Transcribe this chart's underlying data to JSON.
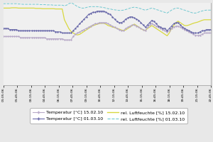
{
  "bg_color": "#e8e8e8",
  "plot_bg_color": "#f0f0f0",
  "x_labels": [
    "01:05:06",
    "01:45:06",
    "03:15:06",
    "04:45:06",
    "06:15:06",
    "07:45:06",
    "09:15:06",
    "10:45:06",
    "12:15:06",
    "13:45:06",
    "15:15:06",
    "16:45:06",
    "18:15:06",
    "19:45:06",
    "21:15:06",
    "22:45:06"
  ],
  "temp_15_color": "#b8aac8",
  "temp_01_color": "#6a6aaa",
  "hum_15_color": "#d8d840",
  "hum_01_color": "#70c8d0",
  "legend_labels": [
    "Temperatur [°C] 15.02.10",
    "Temperatur [°C] 01.03.10",
    "rel. Luftfeuchte [%] 15.02.10",
    "rel. Luftfeuchte [%] 01.03.10"
  ],
  "n_points": 96,
  "temp_15": [
    20.5,
    20.5,
    20.5,
    20.5,
    20.5,
    20.5,
    20.5,
    20.5,
    20.4,
    20.4,
    20.4,
    20.4,
    20.4,
    20.4,
    20.4,
    20.4,
    20.4,
    20.4,
    20.4,
    20.4,
    20.3,
    20.3,
    20.3,
    20.3,
    20.3,
    20.3,
    20.3,
    20.3,
    20.2,
    20.2,
    20.2,
    20.2,
    20.5,
    20.7,
    20.8,
    20.9,
    21.0,
    21.1,
    21.2,
    21.3,
    21.4,
    21.5,
    21.6,
    21.6,
    21.7,
    21.7,
    21.7,
    21.7,
    21.6,
    21.5,
    21.4,
    21.3,
    21.2,
    21.1,
    21.0,
    21.0,
    21.2,
    21.3,
    21.4,
    21.5,
    21.5,
    21.4,
    21.3,
    21.2,
    21.1,
    21.0,
    21.3,
    21.5,
    21.6,
    21.5,
    21.4,
    21.3,
    21.2,
    21.1,
    21.0,
    20.9,
    21.0,
    21.2,
    21.3,
    21.4,
    21.4,
    21.3,
    21.2,
    21.1,
    21.0,
    20.9,
    20.8,
    20.7,
    20.6,
    20.6,
    20.6,
    20.7,
    20.8,
    20.8,
    20.8,
    20.8
  ],
  "temp_01": [
    21.2,
    21.2,
    21.2,
    21.1,
    21.1,
    21.1,
    21.1,
    21.0,
    21.0,
    21.0,
    21.0,
    21.0,
    21.0,
    21.0,
    21.0,
    21.0,
    21.0,
    21.0,
    21.0,
    21.0,
    21.0,
    21.0,
    21.0,
    21.0,
    20.9,
    20.9,
    20.9,
    20.8,
    20.8,
    20.8,
    20.8,
    20.8,
    21.0,
    21.2,
    21.4,
    21.6,
    21.8,
    22.0,
    22.2,
    22.4,
    22.5,
    22.6,
    22.6,
    22.7,
    22.7,
    22.7,
    22.7,
    22.6,
    22.5,
    22.4,
    22.2,
    22.0,
    21.8,
    21.7,
    21.7,
    21.8,
    22.0,
    22.1,
    22.2,
    22.2,
    22.1,
    22.0,
    21.9,
    21.7,
    21.5,
    21.3,
    21.5,
    21.7,
    21.9,
    21.8,
    21.6,
    21.4,
    21.3,
    21.2,
    21.2,
    21.0,
    21.2,
    21.4,
    21.6,
    21.7,
    21.7,
    21.5,
    21.3,
    21.2,
    21.1,
    21.0,
    20.9,
    20.8,
    20.8,
    20.8,
    20.9,
    21.0,
    21.0,
    21.1,
    21.1,
    21.1
  ],
  "hum_15": [
    43.0,
    43.0,
    43.0,
    43.0,
    43.1,
    43.1,
    43.1,
    43.0,
    43.0,
    43.0,
    43.0,
    43.0,
    43.0,
    43.0,
    43.0,
    42.9,
    42.9,
    42.9,
    42.8,
    42.8,
    42.8,
    42.8,
    42.8,
    42.8,
    42.7,
    42.7,
    42.7,
    42.7,
    39.0,
    37.5,
    36.0,
    35.0,
    34.5,
    34.0,
    33.8,
    34.0,
    34.5,
    35.0,
    35.5,
    36.0,
    36.5,
    37.0,
    37.2,
    37.5,
    37.7,
    37.8,
    37.8,
    37.5,
    37.0,
    36.8,
    36.5,
    36.3,
    36.0,
    35.8,
    35.5,
    35.3,
    35.5,
    36.0,
    36.5,
    37.0,
    37.5,
    37.0,
    36.5,
    36.0,
    35.5,
    35.3,
    36.0,
    36.5,
    37.0,
    36.5,
    36.0,
    35.5,
    35.0,
    34.5,
    34.0,
    33.5,
    34.5,
    36.0,
    37.0,
    38.0,
    38.5,
    38.0,
    37.5,
    37.0,
    37.0,
    37.2,
    37.5,
    37.8,
    38.0,
    38.2,
    38.5,
    38.8,
    39.0,
    39.0,
    39.0,
    39.0
  ],
  "hum_01": [
    44.5,
    44.5,
    44.5,
    44.5,
    44.5,
    44.5,
    44.5,
    44.4,
    44.4,
    44.3,
    44.3,
    44.3,
    44.3,
    44.3,
    44.3,
    44.3,
    44.3,
    44.2,
    44.2,
    44.2,
    44.1,
    44.1,
    44.1,
    44.0,
    44.0,
    44.0,
    44.0,
    44.0,
    43.8,
    44.0,
    44.5,
    44.8,
    44.5,
    44.0,
    43.5,
    43.2,
    43.0,
    43.0,
    43.2,
    43.4,
    43.5,
    43.5,
    43.5,
    43.5,
    43.4,
    43.3,
    43.2,
    43.0,
    42.8,
    42.7,
    42.5,
    42.4,
    42.3,
    42.2,
    42.2,
    42.3,
    42.5,
    42.7,
    43.0,
    43.2,
    43.3,
    43.2,
    43.0,
    42.8,
    42.5,
    42.3,
    42.5,
    42.8,
    43.0,
    42.8,
    42.5,
    42.3,
    42.0,
    41.8,
    41.5,
    41.3,
    41.8,
    42.3,
    42.7,
    43.0,
    43.0,
    42.8,
    42.5,
    42.3,
    42.0,
    41.8,
    41.5,
    41.3,
    41.3,
    41.5,
    41.8,
    42.0,
    42.2,
    42.3,
    42.3,
    42.3
  ],
  "display_min": 0.0,
  "display_max": 1.0,
  "temp_display_min": 0.55,
  "temp_display_max": 0.9,
  "hum_display_min": 0.6,
  "hum_display_max": 1.0
}
